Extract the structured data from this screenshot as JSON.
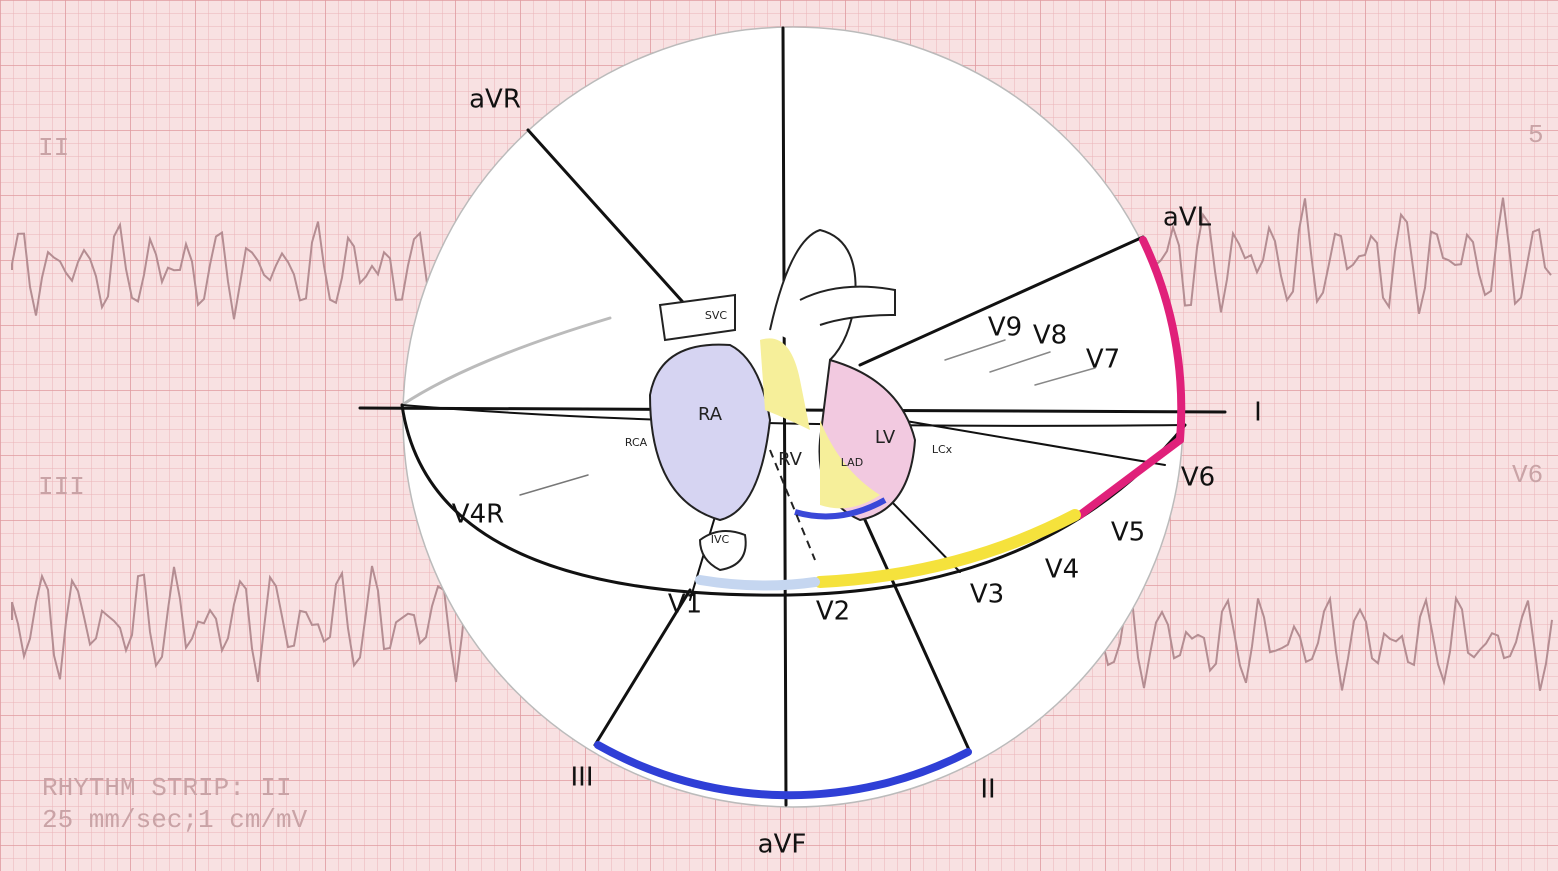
{
  "background": {
    "lead_labels": [
      "II",
      "III",
      "5",
      "V6"
    ],
    "rhythm_strip": [
      "RHYTHM STRIP: II",
      "25 mm/sec;1 cm/mV"
    ]
  },
  "leads": [
    "aVR",
    "aVL",
    "I",
    "V6",
    "V5",
    "V4",
    "V3",
    "V2",
    "V1",
    "V4R",
    "III",
    "aVF",
    "II",
    "V9",
    "V8",
    "V7"
  ],
  "heart": [
    "RA",
    "RV",
    "LV",
    "SVC",
    "IVC",
    "RCA",
    "LAD",
    "LCx"
  ]
}
